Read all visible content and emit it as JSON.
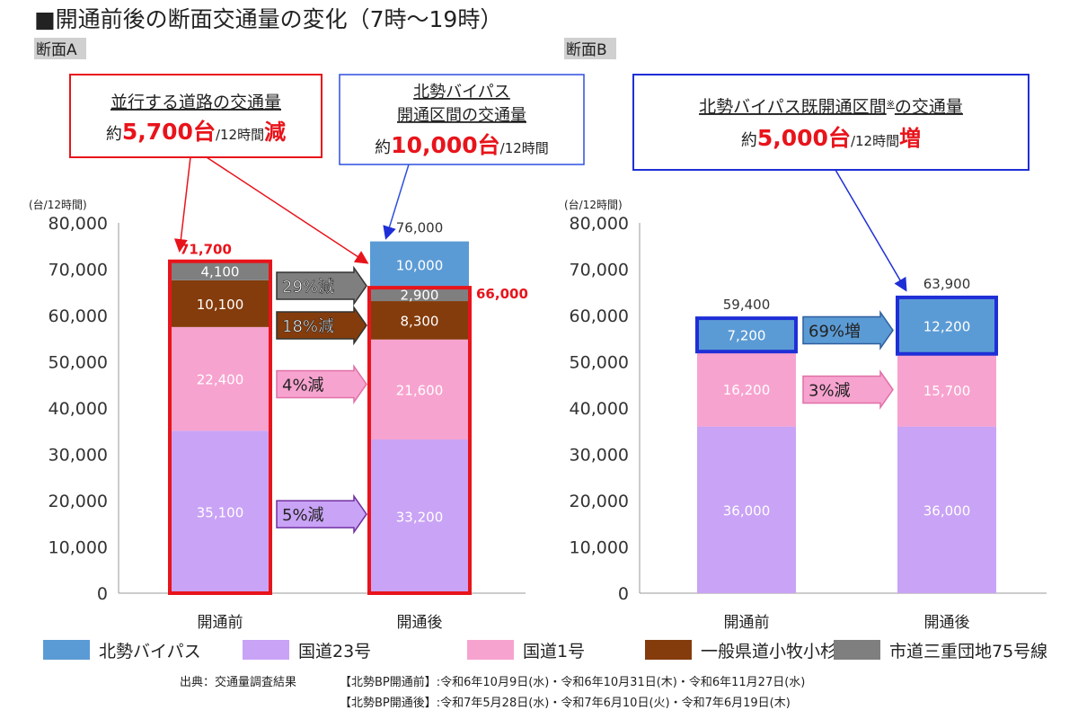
{
  "title": "■開通前後の断面交通量の変化（7時～19時）",
  "colors": {
    "bypass": "#5b9bd5",
    "route23": "#c9a3f5",
    "route1": "#f7a3cf",
    "prefectural": "#843c0c",
    "city": "#7f7f7f",
    "red": "#e8141b",
    "blue": "#1f2fd6"
  },
  "legend": [
    {
      "key": "bypass",
      "label": "北勢バイパス"
    },
    {
      "key": "route23",
      "label": "国道23号"
    },
    {
      "key": "route1",
      "label": "国道1号"
    },
    {
      "key": "prefectural",
      "label": "一般県道小牧小杉線"
    },
    {
      "key": "city",
      "label": "市道三重団地75号線"
    }
  ],
  "callouts": {
    "a_parallel": {
      "line1": "並行する道路の交通量",
      "pre": "約",
      "num": "5,700台",
      "unit": "/12時間",
      "suffix": "減"
    },
    "a_bypass": {
      "line1": "北勢バイパス",
      "line2": "開通区間の交通量",
      "pre": "約",
      "num": "10,000台",
      "unit": "/12時間"
    },
    "b_bypass": {
      "line1": "北勢バイパス既開通区間",
      "mark": "※",
      "line1b": "の交通量",
      "pre": "約",
      "num": "5,000台",
      "unit": "/12時間",
      "suffix": "増"
    }
  },
  "source": {
    "label": "出典：交通量調査結果",
    "before": "【北勢BP開通前】:令和6年10月9日(水)・令和6年10月31日(木)・令和6年11月27日(水)",
    "after": "【北勢BP開通後】:令和7年5月28日(水)・令和7年6月10日(火)・令和7年6月19日(木)"
  },
  "chart_data": [
    {
      "type": "bar",
      "stacked": true,
      "title": "断面A",
      "ylabel": "(台/12時間)",
      "ylim": [
        0,
        80000
      ],
      "yticks": [
        "0",
        "10,000",
        "20,000",
        "30,000",
        "40,000",
        "50,000",
        "60,000",
        "70,000",
        "80,000"
      ],
      "categories": [
        "開通前",
        "開通後"
      ],
      "series": [
        {
          "key": "route23",
          "name": "国道23号",
          "values": [
            35100,
            33200
          ],
          "labels": [
            "35,100",
            "33,200"
          ]
        },
        {
          "key": "route1",
          "name": "国道1号",
          "values": [
            22400,
            21600
          ],
          "labels": [
            "22,400",
            "21,600"
          ]
        },
        {
          "key": "prefectural",
          "name": "一般県道小牧小杉線",
          "values": [
            10100,
            8300
          ],
          "labels": [
            "10,100",
            "8,300"
          ]
        },
        {
          "key": "city",
          "name": "市道三重団地75号線",
          "values": [
            4100,
            2900
          ],
          "labels": [
            "4,100",
            "2,900"
          ]
        },
        {
          "key": "bypass",
          "name": "北勢バイパス",
          "values": [
            0,
            10000
          ],
          "labels": [
            "",
            "10,000"
          ]
        }
      ],
      "totals": [
        "71,700",
        "76,000"
      ],
      "parallel_totals": [
        "71,700",
        "66,000"
      ],
      "changes": [
        {
          "key": "city",
          "label": "29%減"
        },
        {
          "key": "prefectural",
          "label": "18%減"
        },
        {
          "key": "route1",
          "label": "4%減"
        },
        {
          "key": "route23",
          "label": "5%減"
        }
      ]
    },
    {
      "type": "bar",
      "stacked": true,
      "title": "断面B",
      "ylabel": "(台/12時間)",
      "ylim": [
        0,
        80000
      ],
      "yticks": [
        "0",
        "10,000",
        "20,000",
        "30,000",
        "40,000",
        "50,000",
        "60,000",
        "70,000",
        "80,000"
      ],
      "categories": [
        "開通前",
        "開通後"
      ],
      "series": [
        {
          "key": "route23",
          "name": "国道23号",
          "values": [
            36000,
            36000
          ],
          "labels": [
            "36,000",
            "36,000"
          ]
        },
        {
          "key": "route1",
          "name": "国道1号",
          "values": [
            16200,
            15700
          ],
          "labels": [
            "16,200",
            "15,700"
          ]
        },
        {
          "key": "bypass",
          "name": "北勢バイパス",
          "values": [
            7200,
            12200
          ],
          "labels": [
            "7,200",
            "12,200"
          ]
        }
      ],
      "totals": [
        "59,400",
        "63,900"
      ],
      "changes": [
        {
          "key": "bypass",
          "label": "69%増"
        },
        {
          "key": "route1",
          "label": "3%減"
        }
      ]
    }
  ]
}
